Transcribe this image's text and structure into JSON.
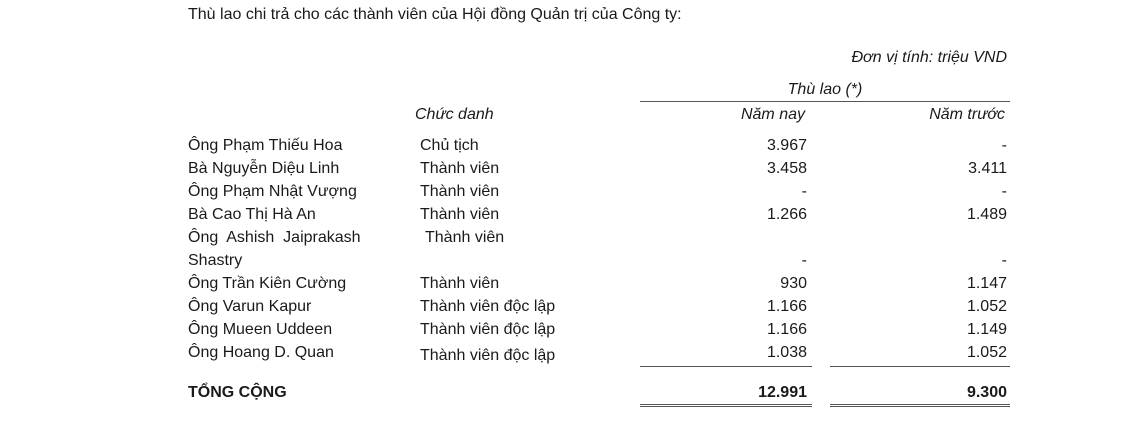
{
  "intro": "Thù lao chi trả cho các thành viên của Hội đồng Quản trị của Công ty:",
  "unit": "Đơn vị tính: triệu VND",
  "table": {
    "group_header": "Thù lao (*)",
    "col_title": "Chức danh",
    "col_current": "Năm nay",
    "col_prior": "Năm trước",
    "rows": [
      {
        "name": "Ông Phạm Thiếu Hoa",
        "title": "Chủ tịch",
        "current": "3.967",
        "prior": "-"
      },
      {
        "name": "Bà Nguyễn Diệu Linh",
        "title": "Thành viên",
        "current": "3.458",
        "prior": "3.411"
      },
      {
        "name": "Ông Phạm Nhật Vượng",
        "title": "Thành viên",
        "current": "-",
        "prior": "-"
      },
      {
        "name": "Bà Cao Thị Hà An",
        "title": "Thành viên",
        "current": "1.266",
        "prior": "1.489"
      },
      {
        "name": "Ông  Ashish  Jaiprakash",
        "name2": "Shastry",
        "title": "Thành viên",
        "current": "-",
        "prior": "-"
      },
      {
        "name": "Ông Trần Kiên Cường",
        "title": "Thành viên",
        "current": "930",
        "prior": "1.147"
      },
      {
        "name": "Ông Varun Kapur",
        "title": "Thành viên độc lập",
        "current": "1.166",
        "prior": "1.052"
      },
      {
        "name": "Ông Mueen Uddeen",
        "title": "Thành viên độc lập",
        "current": "1.166",
        "prior": "1.149"
      },
      {
        "name": "Ông Hoang D. Quan",
        "title": "Thành viên độc lập",
        "current": "1.038",
        "prior": "1.052"
      }
    ],
    "total": {
      "label": "TỔNG CỘNG",
      "current": "12.991",
      "prior": "9.300"
    }
  }
}
